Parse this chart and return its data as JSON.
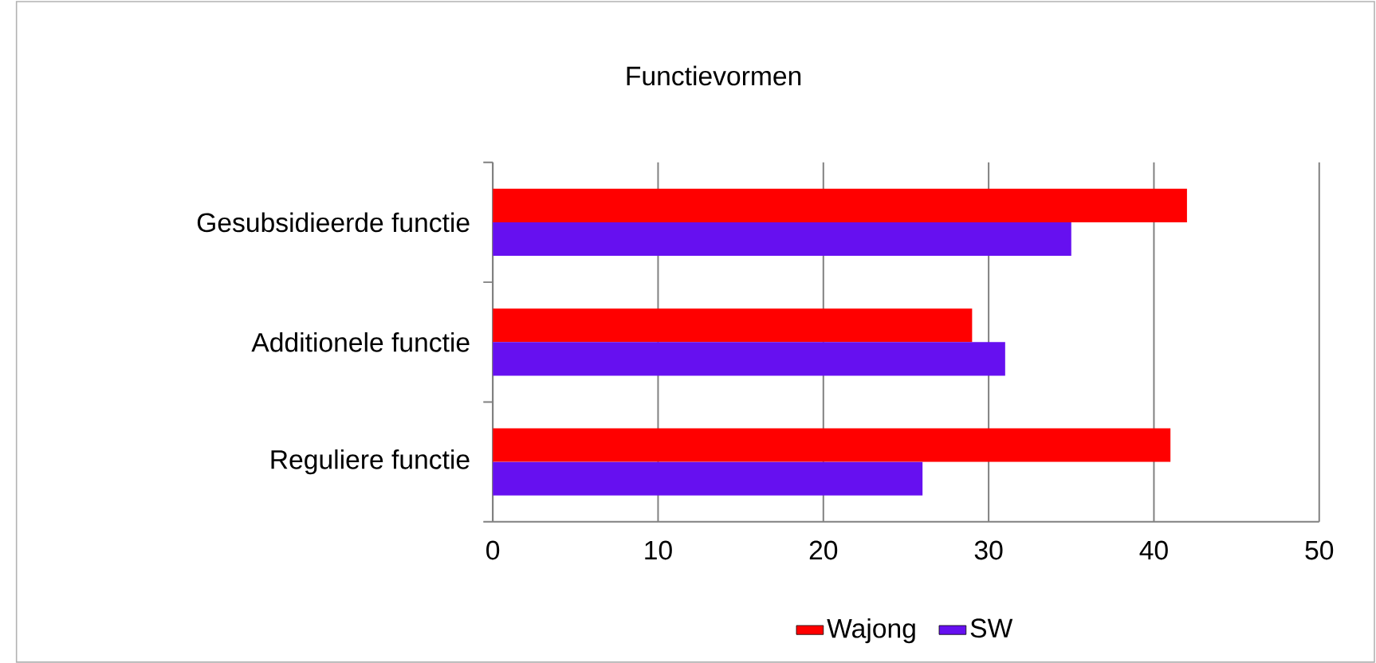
{
  "chart_data": {
    "type": "bar",
    "orientation": "horizontal",
    "title": "Functievormen",
    "categories": [
      "Gesubsidieerde functie",
      "Additionele functie",
      "Reguliere functie"
    ],
    "series": [
      {
        "name": "Wajong",
        "color": "#ff0000",
        "values": [
          42,
          29,
          41
        ]
      },
      {
        "name": "SW",
        "color": "#6610f0",
        "values": [
          35,
          31,
          26
        ]
      }
    ],
    "xlim": [
      0,
      50
    ],
    "xticks": [
      0,
      10,
      20,
      30,
      40,
      50
    ],
    "grid": "x",
    "legend": "bottom"
  }
}
